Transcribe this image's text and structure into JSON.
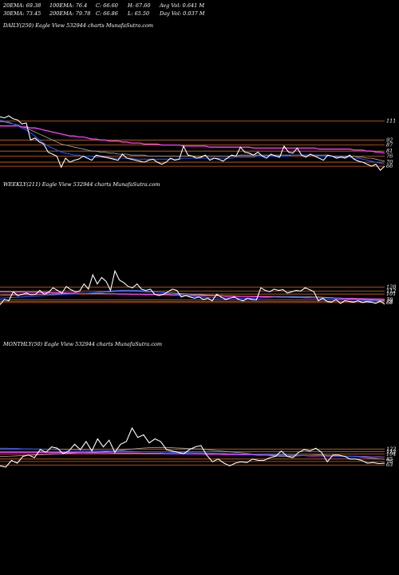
{
  "header": {
    "r1": [
      "20EMA: 69.38",
      "100EMA: 76.4",
      "C: 66.60",
      "H: 67.60",
      "Avg Vol: 0.641 M"
    ],
    "r2": [
      "30EMA: 73.45",
      "200EMA: 79.78",
      "C: 66.86",
      "L: 65.50",
      "Day Vol: 0.037 M"
    ]
  },
  "colors": {
    "price": "#ffffff",
    "ema_fast": "#2255ff",
    "ema_slow": "#ff44ff",
    "ema_mid": "#aaaaaa",
    "level": "#d2691e"
  },
  "chart_data": [
    {
      "type": "line",
      "title": "DAILY(250) Eagle  View  532944  charts MunafaSutra.com",
      "level_labels": [
        111,
        92,
        87,
        81,
        76,
        70,
        66
      ],
      "ylim": [
        55,
        120
      ],
      "series": [
        {
          "role": "price",
          "values": [
            115,
            114,
            116,
            113,
            112,
            108,
            109,
            92,
            94,
            90,
            88,
            80,
            78,
            76,
            65,
            74,
            70,
            72,
            73,
            76,
            74,
            72,
            77,
            76,
            75,
            74,
            73,
            72,
            78,
            74,
            73,
            72,
            71,
            70,
            72,
            73,
            70,
            68,
            70,
            74,
            72,
            73,
            86,
            77,
            76,
            74,
            75,
            77,
            72,
            74,
            73,
            71,
            74,
            77,
            76,
            85,
            80,
            79,
            77,
            80,
            76,
            74,
            78,
            76,
            75,
            86,
            80,
            79,
            84,
            77,
            75,
            78,
            76,
            74,
            72,
            77,
            76,
            74,
            75,
            74,
            77,
            73,
            71,
            70,
            68,
            66,
            68,
            62,
            66
          ]
        },
        {
          "role": "ema_fast",
          "values": [
            112,
            111,
            110,
            108,
            106,
            104,
            102,
            99,
            96,
            92,
            89,
            86,
            84,
            82,
            80,
            79,
            78,
            77,
            77,
            76,
            76,
            76,
            75,
            75,
            75,
            75,
            74,
            74,
            74,
            74,
            74,
            73,
            73,
            73,
            73,
            73,
            73,
            73,
            73,
            73,
            73,
            73,
            74,
            74,
            74,
            74,
            74,
            74,
            74,
            74,
            74,
            74,
            74,
            74,
            75,
            75,
            75,
            75,
            75,
            76,
            76,
            76,
            76,
            76,
            76,
            76,
            76,
            77,
            77,
            77,
            77,
            77,
            77,
            76,
            76,
            76,
            76,
            75,
            75,
            75,
            75,
            74,
            74,
            73,
            72,
            71,
            70,
            69,
            68
          ]
        },
        {
          "role": "ema_slow",
          "values": [
            106,
            106,
            106,
            106,
            106,
            105,
            105,
            104,
            104,
            103,
            102,
            101,
            100,
            99,
            98,
            97,
            96,
            96,
            95,
            95,
            94,
            93,
            93,
            92,
            92,
            91,
            91,
            91,
            90,
            90,
            89,
            89,
            89,
            88,
            88,
            88,
            88,
            87,
            87,
            87,
            87,
            87,
            86,
            86,
            86,
            86,
            86,
            86,
            85,
            85,
            85,
            85,
            85,
            85,
            85,
            85,
            85,
            85,
            84,
            84,
            84,
            84,
            84,
            84,
            84,
            84,
            84,
            84,
            84,
            84,
            84,
            84,
            84,
            83,
            83,
            83,
            83,
            83,
            83,
            83,
            83,
            82,
            82,
            82,
            81,
            81,
            80,
            80,
            79
          ]
        },
        {
          "role": "ema_mid",
          "values": [
            110,
            110,
            109,
            108,
            107,
            105,
            104,
            102,
            100,
            98,
            96,
            94,
            92,
            90,
            88,
            87,
            86,
            85,
            84,
            83,
            82,
            81,
            81,
            80,
            80,
            79,
            79,
            78,
            78,
            78,
            77,
            77,
            77,
            77,
            76,
            76,
            76,
            76,
            76,
            76,
            76,
            76,
            76,
            76,
            76,
            76,
            76,
            76,
            76,
            76,
            76,
            76,
            76,
            76,
            76,
            77,
            77,
            77,
            77,
            77,
            77,
            77,
            77,
            77,
            77,
            77,
            77,
            77,
            77,
            77,
            77,
            77,
            77,
            77,
            77,
            77,
            76,
            76,
            76,
            76,
            76,
            76,
            75,
            75,
            74,
            74,
            73,
            72,
            71
          ]
        }
      ]
    },
    {
      "type": "line",
      "title": "WEEKLY(211) Eagle  View  532944  charts MunafaSutra.com",
      "level_labels": [
        128,
        112,
        101,
        78,
        73,
        68
      ],
      "ylim": [
        40,
        200
      ],
      "series": [
        {
          "role": "price",
          "values": [
            60,
            80,
            75,
            110,
            95,
            100,
            105,
            98,
            100,
            115,
            100,
            108,
            125,
            115,
            105,
            130,
            118,
            110,
            112,
            140,
            120,
            175,
            140,
            165,
            150,
            115,
            190,
            155,
            145,
            130,
            125,
            140,
            120,
            115,
            120,
            100,
            95,
            100,
            110,
            120,
            115,
            90,
            95,
            90,
            85,
            90,
            80,
            85,
            75,
            100,
            90,
            80,
            85,
            90,
            80,
            75,
            85,
            80,
            78,
            125,
            115,
            110,
            120,
            115,
            118,
            105,
            110,
            115,
            112,
            125,
            118,
            110,
            75,
            85,
            72,
            70,
            80,
            65,
            75,
            72,
            70,
            75,
            68,
            72,
            70,
            65,
            74,
            62
          ]
        },
        {
          "role": "ema_fast",
          "values": [
            85,
            86,
            87,
            88,
            89,
            90,
            91,
            92,
            93,
            94,
            95,
            96,
            97,
            98,
            99,
            100,
            101,
            102,
            103,
            104,
            105,
            106,
            108,
            110,
            112,
            113,
            114,
            115,
            116,
            116,
            116,
            115,
            114,
            113,
            112,
            110,
            108,
            106,
            104,
            102,
            100,
            98,
            96,
            94,
            92,
            90,
            89,
            88,
            87,
            86,
            86,
            86,
            86,
            86,
            85,
            85,
            85,
            85,
            85,
            86,
            87,
            88,
            89,
            89,
            90,
            90,
            90,
            90,
            90,
            90,
            89,
            88,
            87,
            86,
            85,
            84,
            83,
            82,
            81,
            80,
            79,
            78,
            77,
            76,
            75,
            74,
            73,
            72
          ]
        },
        {
          "role": "ema_slow",
          "values": [
            110,
            110,
            110,
            109,
            109,
            109,
            108,
            108,
            108,
            107,
            107,
            107,
            106,
            106,
            106,
            105,
            105,
            105,
            104,
            104,
            104,
            103,
            103,
            103,
            102,
            102,
            102,
            101,
            101,
            101,
            100,
            100,
            100,
            99,
            99,
            99,
            98,
            98,
            98,
            97,
            97,
            97,
            96,
            96,
            96,
            95,
            95,
            95,
            94,
            94,
            94,
            93,
            93,
            93,
            92,
            92,
            92,
            91,
            91,
            91,
            90,
            90,
            90,
            89,
            89,
            89,
            88,
            88,
            88,
            87,
            87,
            87,
            86,
            86,
            86,
            85,
            85,
            85,
            84,
            84,
            84,
            83,
            83,
            83,
            82,
            82,
            82,
            81
          ]
        },
        {
          "role": "ema_mid",
          "values": [
            95,
            96,
            96,
            97,
            97,
            98,
            98,
            99,
            99,
            100,
            100,
            101,
            101,
            102,
            102,
            103,
            103,
            104,
            104,
            105,
            105,
            106,
            107,
            108,
            109,
            110,
            111,
            112,
            112,
            112,
            112,
            111,
            111,
            110,
            110,
            109,
            108,
            107,
            106,
            105,
            104,
            103,
            102,
            101,
            100,
            99,
            98,
            97,
            96,
            95,
            95,
            94,
            94,
            93,
            93,
            92,
            92,
            92,
            92,
            92,
            92,
            92,
            92,
            92,
            92,
            92,
            92,
            92,
            91,
            91,
            91,
            90,
            90,
            89,
            88,
            87,
            86,
            85,
            84,
            83,
            82,
            81,
            80,
            79,
            78,
            77,
            76,
            75
          ]
        }
      ]
    },
    {
      "type": "line",
      "title": "MONTHLY(50) Eagle  View  532944  charts MunafaSutra.com",
      "level_labels": [
        122,
        112,
        104,
        85,
        76,
        63
      ],
      "ylim": [
        40,
        200
      ],
      "series": [
        {
          "role": "price",
          "values": [
            60,
            55,
            80,
            70,
            95,
            100,
            90,
            120,
            110,
            130,
            125,
            105,
            115,
            140,
            120,
            150,
            115,
            160,
            130,
            155,
            110,
            140,
            150,
            200,
            165,
            175,
            145,
            160,
            150,
            120,
            115,
            110,
            105,
            120,
            130,
            135,
            100,
            75,
            85,
            70,
            60,
            70,
            75,
            72,
            85,
            80,
            80,
            90,
            95,
            115,
            95,
            90,
            110,
            120,
            115,
            125,
            110,
            75,
            100,
            100,
            95,
            85,
            85,
            80,
            70,
            72,
            68,
            70
          ]
        },
        {
          "role": "ema_fast",
          "values": [
            125,
            125,
            124,
            124,
            123,
            123,
            122,
            122,
            121,
            121,
            120,
            120,
            119,
            119,
            118,
            118,
            117,
            117,
            116,
            116,
            115,
            115,
            114,
            114,
            113,
            113,
            112,
            112,
            111,
            111,
            110,
            110,
            109,
            109,
            108,
            108,
            107,
            107,
            106,
            106,
            105,
            105,
            104,
            104,
            103,
            103,
            102,
            102,
            101,
            101,
            100,
            100,
            99,
            99,
            98,
            98,
            97,
            97,
            96,
            96,
            95,
            95,
            94,
            94,
            93,
            93,
            92,
            92
          ]
        },
        {
          "role": "ema_slow",
          "values": [
            110,
            110,
            110,
            110,
            110,
            110,
            110,
            110,
            110,
            109,
            109,
            109,
            109,
            109,
            109,
            108,
            108,
            108,
            108,
            108,
            107,
            107,
            107,
            107,
            107,
            106,
            106,
            106,
            106,
            105,
            105,
            105,
            105,
            104,
            104,
            104,
            103,
            103,
            103,
            102,
            102,
            102,
            101,
            101,
            101,
            100,
            100,
            100,
            99,
            99,
            99,
            98,
            98,
            98,
            97,
            97,
            97,
            96,
            96,
            96,
            95,
            95,
            95,
            94,
            94,
            93,
            93,
            92
          ]
        },
        {
          "role": "ema_mid",
          "values": [
            95,
            95,
            96,
            97,
            98,
            99,
            100,
            101,
            102,
            103,
            104,
            105,
            106,
            107,
            108,
            109,
            110,
            111,
            112,
            114,
            116,
            118,
            120,
            122,
            124,
            126,
            127,
            128,
            128,
            128,
            127,
            126,
            125,
            124,
            123,
            122,
            120,
            118,
            116,
            114,
            112,
            110,
            108,
            106,
            104,
            102,
            100,
            98,
            96,
            95,
            95,
            96,
            97,
            98,
            99,
            100,
            100,
            99,
            98,
            97,
            96,
            95,
            94,
            92,
            90,
            88,
            86,
            84
          ]
        }
      ]
    }
  ]
}
